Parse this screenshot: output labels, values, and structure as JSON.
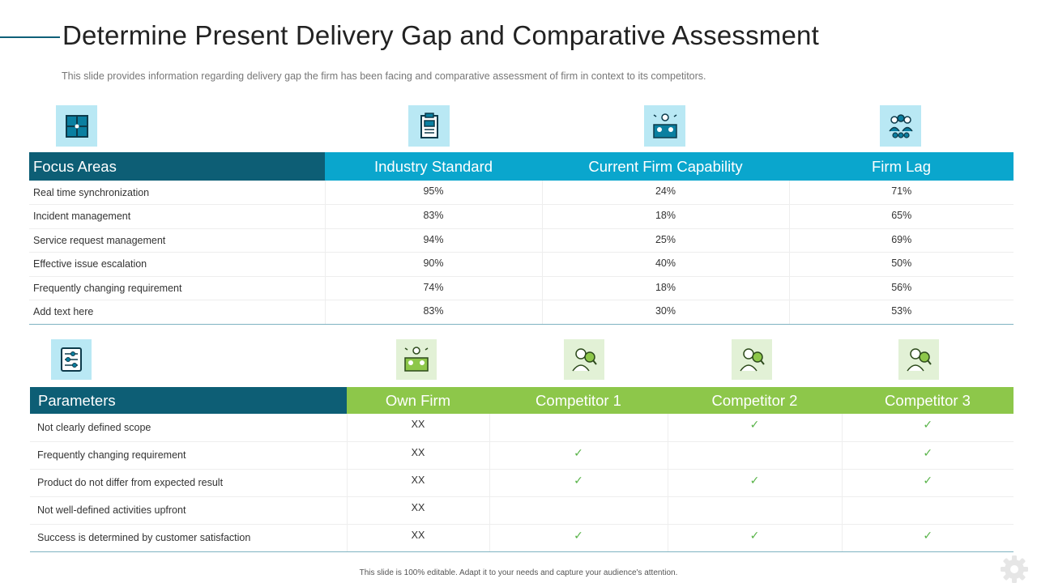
{
  "title": "Determine Present Delivery Gap and Comparative Assessment",
  "subtitle": "This slide provides  information  regarding  delivery  gap the firm has been facing and comparative  assessment of firm in context to its competitors.",
  "colors": {
    "dark_teal": "#0d5e75",
    "cyan": "#0aa6cd",
    "green": "#8dc74a",
    "check": "#57b347"
  },
  "table1": {
    "headers": [
      "Focus Areas",
      "Industry Standard",
      "Current Firm Capability",
      "Firm Lag"
    ],
    "icons": [
      "window-icon",
      "clipboard-icon",
      "presenter-icon",
      "team-icon"
    ],
    "rows": [
      {
        "area": "Real time synchronization",
        "industry": "95%",
        "current": "24%",
        "lag": "71%"
      },
      {
        "area": "Incident  management",
        "industry": "83%",
        "current": "18%",
        "lag": "65%"
      },
      {
        "area": "Service  request  management",
        "industry": "94%",
        "current": "25%",
        "lag": "69%"
      },
      {
        "area": "Effective  issue escalation",
        "industry": "90%",
        "current": "40%",
        "lag": "50%"
      },
      {
        "area": "Frequently  changing  requirement",
        "industry": "74%",
        "current": "18%",
        "lag": "56%"
      },
      {
        "area": "Add text here",
        "industry": "83%",
        "current": "30%",
        "lag": "53%"
      }
    ]
  },
  "table2": {
    "headers": [
      "Parameters",
      "Own Firm",
      "Competitor 1",
      "Competitor 2",
      "Competitor 3"
    ],
    "icons": [
      "sliders-icon",
      "presenter-icon",
      "analyst-icon",
      "analyst-icon",
      "analyst-icon"
    ],
    "rows": [
      {
        "param": "Not clearly defined  scope",
        "own": "XX",
        "c1": "",
        "c2": "✓",
        "c3": "✓"
      },
      {
        "param": "Frequently  changing  requirement",
        "own": "XX",
        "c1": "✓",
        "c2": "",
        "c3": "✓"
      },
      {
        "param": "Product  do  not  differ  from  expected result",
        "own": "XX",
        "c1": "✓",
        "c2": "✓",
        "c3": "✓"
      },
      {
        "param": "Not well-defined   activities upfront",
        "own": "XX",
        "c1": "",
        "c2": "",
        "c3": ""
      },
      {
        "param": "Success is determined  by customer satisfaction",
        "own": "XX",
        "c1": "✓",
        "c2": "✓",
        "c3": "✓"
      }
    ]
  },
  "footer": "This slide is 100% editable.  Adapt it to your needs and capture your audience's attention.",
  "settings_icon": "gear-icon"
}
